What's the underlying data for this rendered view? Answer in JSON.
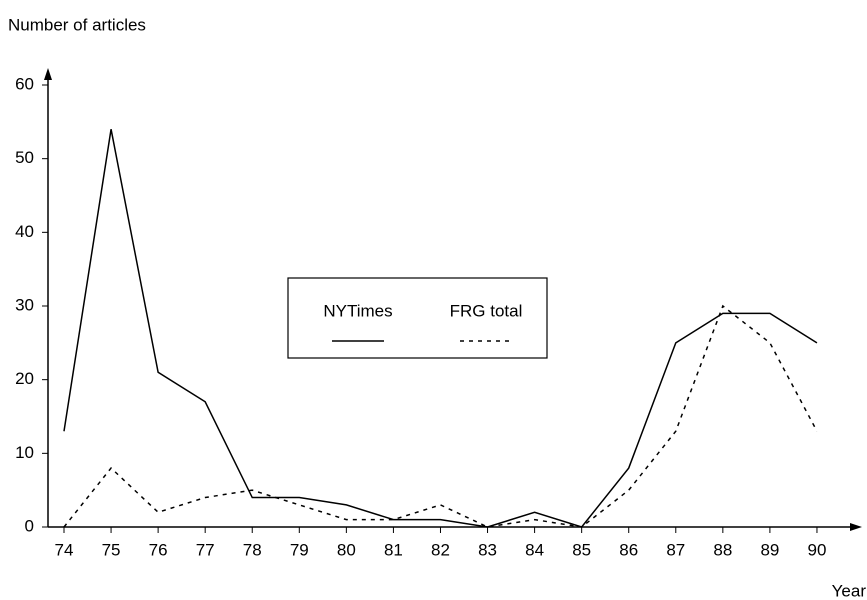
{
  "chart_data": {
    "type": "line",
    "y_label": "Number of articles",
    "x_label": "Year",
    "categories": [
      "74",
      "75",
      "76",
      "77",
      "78",
      "79",
      "80",
      "81",
      "82",
      "83",
      "84",
      "85",
      "86",
      "87",
      "88",
      "89",
      "90"
    ],
    "series": [
      {
        "name": "NYTimes",
        "color": "#000000",
        "dash": "solid",
        "values": [
          13,
          54,
          21,
          17,
          4,
          4,
          3,
          1,
          1,
          0,
          2,
          0,
          8,
          25,
          29,
          29,
          25
        ]
      },
      {
        "name": "FRG total",
        "color": "#000000",
        "dash": "dotted",
        "values": [
          0,
          8,
          2,
          4,
          5,
          3,
          1,
          1,
          3,
          0,
          1,
          0,
          5,
          13,
          30,
          25,
          13
        ]
      }
    ],
    "ylim": [
      0,
      60
    ],
    "yticks": [
      0,
      10,
      20,
      30,
      40,
      50,
      60
    ],
    "grid": false
  }
}
